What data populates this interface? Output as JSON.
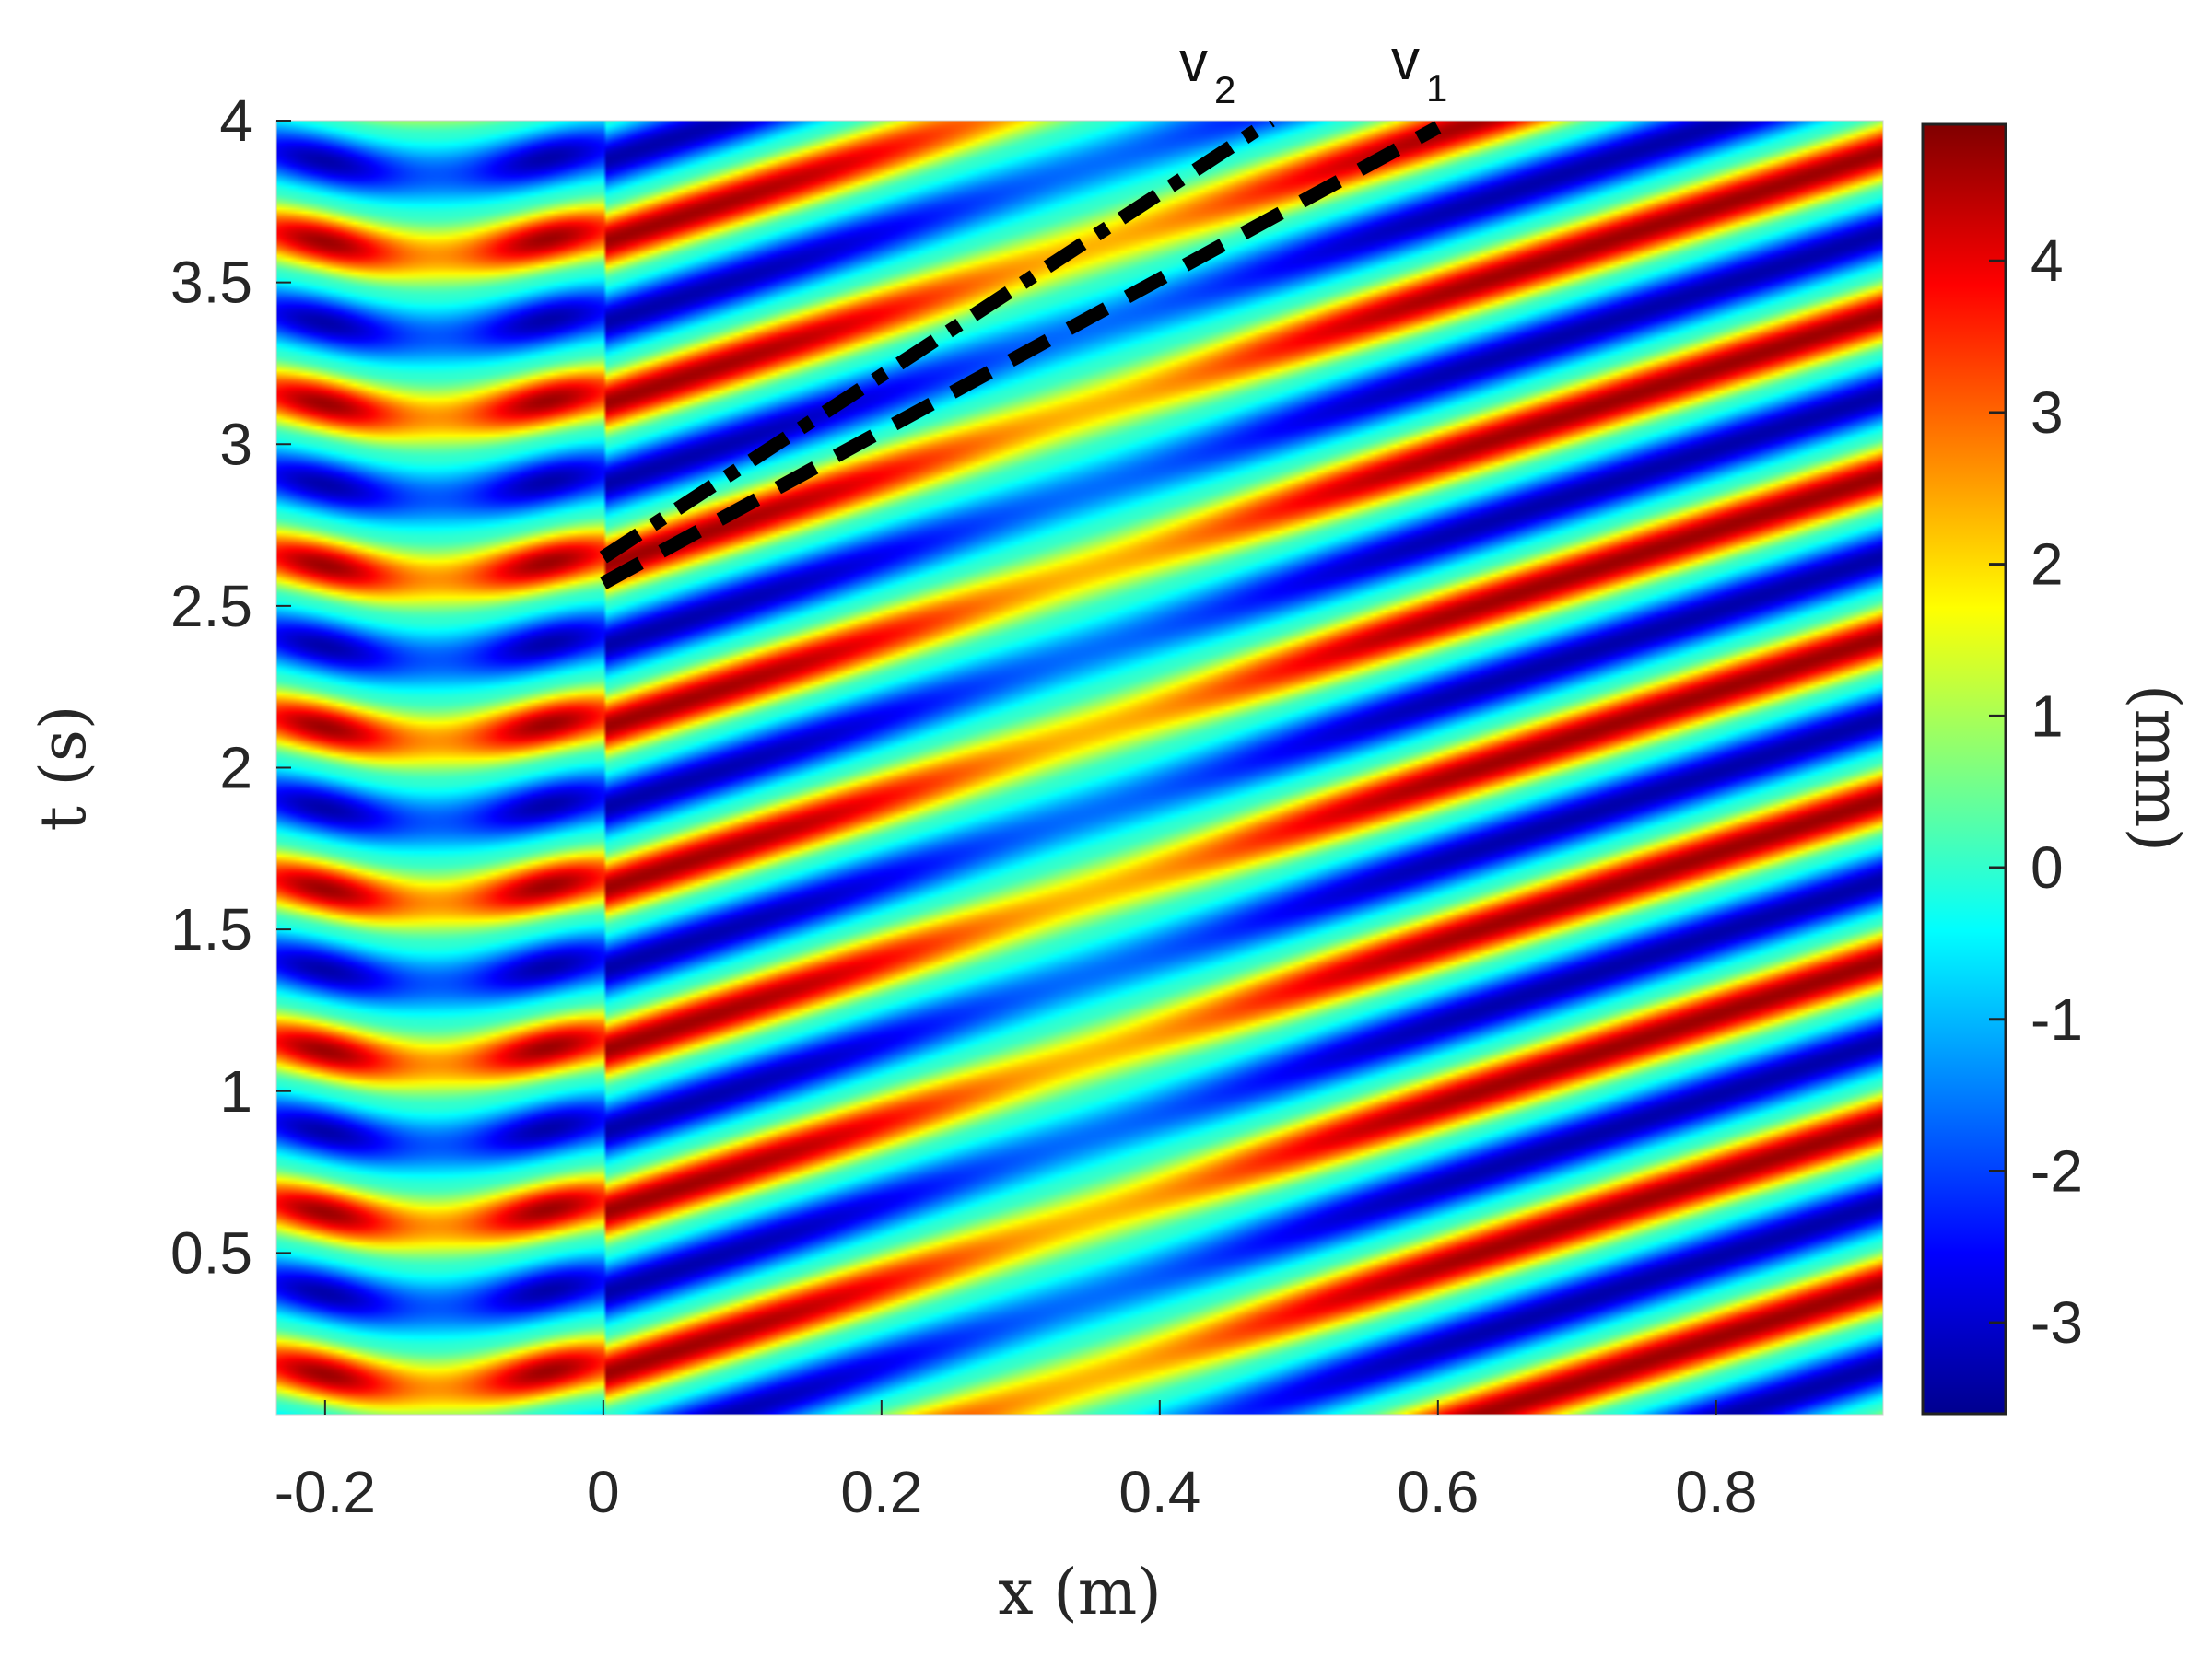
{
  "chart_data": {
    "type": "heatmap",
    "colormap": "jet",
    "xlabel": "x (m)",
    "ylabel": "t (s)",
    "xlim": [
      -0.235,
      0.92
    ],
    "ylim": [
      0.0,
      4.0
    ],
    "xticks": [
      -0.2,
      0,
      0.2,
      0.4,
      0.6,
      0.8
    ],
    "xtick_labels": [
      "-0.2",
      "0",
      "0.2",
      "0.4",
      "0.6",
      "0.8"
    ],
    "yticks": [
      0.5,
      1,
      1.5,
      2,
      2.5,
      3,
      3.5,
      4
    ],
    "ytick_labels": [
      "0.5",
      "1",
      "1.5",
      "2",
      "2.5",
      "3",
      "3.5",
      "4"
    ],
    "colorbar": {
      "label": "(mm)",
      "range": [
        -3.6,
        4.9
      ],
      "ticks": [
        -3,
        -2,
        -1,
        0,
        1,
        2,
        3,
        4
      ],
      "tick_labels": [
        "-3",
        "-2",
        "-1",
        "0",
        "1",
        "2",
        "3",
        "4"
      ]
    },
    "field_description": {
      "wave_period_s": 0.5,
      "incoming_region_x": [
        -0.235,
        0.0
      ],
      "transmitted_region_x": [
        0.0,
        0.92
      ],
      "peak_amplitude_mm": 4.9,
      "trough_amplitude_mm": -3.6
    },
    "annotations": [
      {
        "name": "v",
        "subscript": "2",
        "style": "dash-dot",
        "points": [
          [
            0.0,
            2.65
          ],
          [
            0.48,
            4.0
          ]
        ]
      },
      {
        "name": "v",
        "subscript": "1",
        "style": "dashed",
        "points": [
          [
            0.0,
            2.57
          ],
          [
            0.6,
            3.98
          ]
        ]
      }
    ]
  }
}
